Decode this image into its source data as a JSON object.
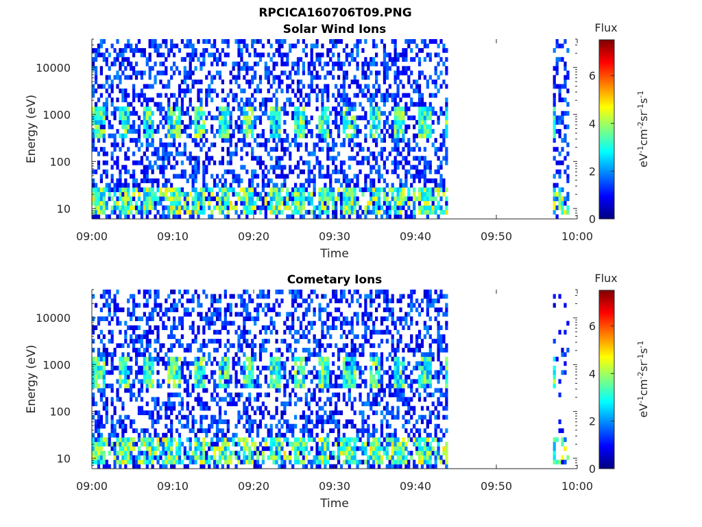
{
  "figure_title": "RPCICA160706T09.PNG",
  "colors": {
    "axis": "#262626",
    "background": "#ffffff",
    "colormap": "jet"
  },
  "chart_data": [
    {
      "type": "heatmap",
      "title": "Solar Wind Ions",
      "xlabel": "Time",
      "ylabel": "Energy (eV)",
      "x_ticks": [
        "09:00",
        "09:10",
        "09:20",
        "09:30",
        "09:40",
        "09:50",
        "10:00"
      ],
      "x_range": [
        "09:00",
        "10:00"
      ],
      "y_scale": "log",
      "y_ticks": [
        10,
        100,
        1000,
        10000
      ],
      "y_range": [
        6,
        40000
      ],
      "data_gap": [
        "09:44",
        "09:57"
      ],
      "data_coverage": [
        [
          "09:00",
          "09:44"
        ],
        [
          "09:57",
          "09:59"
        ]
      ],
      "energy_bands": [
        {
          "energy_eV": [
            300,
            1500
          ],
          "flux": [
            2,
            4.5
          ],
          "pattern": "periodic bursts every ~3 min"
        },
        {
          "energy_eV": [
            8,
            30
          ],
          "flux": [
            2,
            5
          ],
          "pattern": "periodic bursts every ~3 min"
        },
        {
          "energy_eV": [
            30,
            40000
          ],
          "flux": [
            0.5,
            2
          ],
          "pattern": "sparse background"
        }
      ],
      "colorbar": {
        "label": "Flux",
        "unit_label": "eV⁻¹cm⁻²sr⁻¹s⁻¹",
        "ticks": [
          0,
          2,
          4,
          6
        ],
        "range": [
          0,
          7.5
        ]
      }
    },
    {
      "type": "heatmap",
      "title": "Cometary Ions",
      "xlabel": "Time",
      "ylabel": "Energy (eV)",
      "x_ticks": [
        "09:00",
        "09:10",
        "09:20",
        "09:30",
        "09:40",
        "09:50",
        "10:00"
      ],
      "x_range": [
        "09:00",
        "10:00"
      ],
      "y_scale": "log",
      "y_ticks": [
        10,
        100,
        1000,
        10000
      ],
      "y_range": [
        6,
        40000
      ],
      "data_gap": [
        "09:44",
        "09:57"
      ],
      "data_coverage": [
        [
          "09:00",
          "09:44"
        ],
        [
          "09:57",
          "09:59"
        ]
      ],
      "energy_bands": [
        {
          "energy_eV": [
            300,
            1500
          ],
          "flux": [
            2,
            4.5
          ],
          "pattern": "periodic bursts every ~3 min"
        },
        {
          "energy_eV": [
            8,
            30
          ],
          "flux": [
            2,
            5
          ],
          "pattern": "periodic bursts every ~3 min"
        },
        {
          "energy_eV": [
            30,
            40000
          ],
          "flux": [
            0.5,
            2
          ],
          "pattern": "sparse background"
        }
      ],
      "colorbar": {
        "label": "Flux",
        "unit_label": "eV⁻¹cm⁻²sr⁻¹s⁻¹",
        "ticks": [
          0,
          2,
          4,
          6
        ],
        "range": [
          0,
          7.5
        ]
      }
    }
  ]
}
